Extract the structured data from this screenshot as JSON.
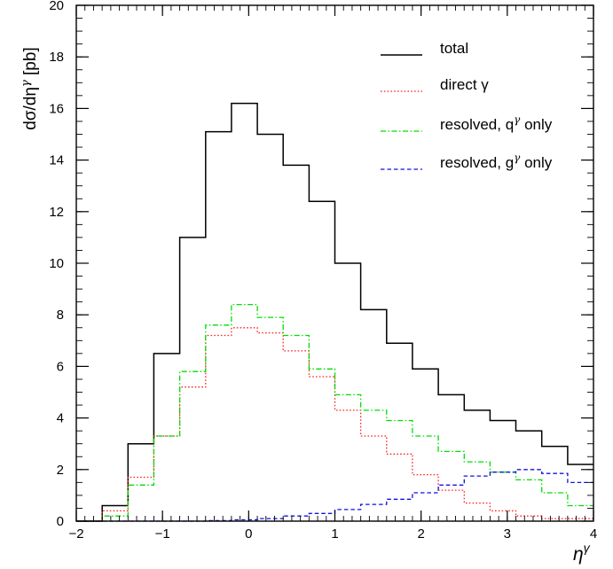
{
  "chart_data": {
    "type": "line",
    "title": "",
    "xlabel": "η^γ",
    "xlabel_base": "η",
    "xlabel_sup": "γ",
    "ylabel": "dσ/dη^γ [pb]",
    "ylabel_main": "dσ/dη",
    "ylabel_sup": "γ",
    "ylabel_unit": " [pb]",
    "xlim": [
      -2,
      4
    ],
    "ylim": [
      0,
      20
    ],
    "grid": false,
    "legend_placement": "top-right",
    "x_ticks": [
      {
        "v": -2,
        "label": "−2"
      },
      {
        "v": -1,
        "label": "−1"
      },
      {
        "v": 0,
        "label": "0"
      },
      {
        "v": 1,
        "label": "1"
      },
      {
        "v": 2,
        "label": "2"
      },
      {
        "v": 3,
        "label": "3"
      },
      {
        "v": 4,
        "label": "4"
      }
    ],
    "y_ticks": [
      {
        "v": 0,
        "label": "0"
      },
      {
        "v": 2,
        "label": "2"
      },
      {
        "v": 4,
        "label": "4"
      },
      {
        "v": 6,
        "label": "6"
      },
      {
        "v": 8,
        "label": "8"
      },
      {
        "v": 10,
        "label": "10"
      },
      {
        "v": 12,
        "label": "12"
      },
      {
        "v": 14,
        "label": "14"
      },
      {
        "v": 16,
        "label": "16"
      },
      {
        "v": 18,
        "label": "18"
      },
      {
        "v": 20,
        "label": "20"
      }
    ],
    "bin_edges": [
      -2.0,
      -1.7,
      -1.4,
      -1.1,
      -0.8,
      -0.5,
      -0.2,
      0.1,
      0.4,
      0.7,
      1.0,
      1.3,
      1.6,
      1.9,
      2.2,
      2.5,
      2.8,
      3.1,
      3.4,
      3.7,
      4.0
    ],
    "series": [
      {
        "name": "total",
        "legend_base": "total",
        "legend_sup": "",
        "legend_suffix": "",
        "color": "#000000",
        "dash": "",
        "values": [
          0.0,
          0.6,
          3.0,
          6.5,
          11.0,
          15.1,
          16.2,
          15.0,
          13.8,
          12.4,
          10.0,
          8.2,
          6.9,
          5.9,
          4.9,
          4.3,
          3.9,
          3.5,
          2.9,
          2.2
        ]
      },
      {
        "name": "direct γ",
        "legend_base": "direct γ",
        "legend_sup": "",
        "legend_suffix": "",
        "color": "#ff2020",
        "dash": "1.6 2.2",
        "values": [
          0.0,
          0.4,
          1.7,
          3.3,
          5.2,
          7.2,
          7.5,
          7.3,
          6.6,
          5.6,
          4.3,
          3.3,
          2.6,
          1.8,
          1.2,
          0.7,
          0.4,
          0.2,
          0.1,
          0.1
        ]
      },
      {
        "name": "resolved, q^γ only",
        "legend_base": "resolved, q",
        "legend_sup": "γ",
        "legend_suffix": " only",
        "color": "#00dd00",
        "dash": "6 2.5 1.5 2.5",
        "values": [
          0.0,
          0.2,
          1.4,
          3.3,
          5.8,
          7.6,
          8.4,
          7.9,
          7.2,
          5.9,
          4.9,
          4.3,
          3.9,
          3.3,
          2.7,
          2.3,
          1.9,
          1.6,
          1.1,
          0.6
        ]
      },
      {
        "name": "resolved, g^γ only",
        "legend_base": "resolved, g",
        "legend_sup": "γ",
        "legend_suffix": " only",
        "color": "#1010dd",
        "dash": "4.5 3",
        "values": [
          0.0,
          0.0,
          0.0,
          0.0,
          0.0,
          0.02,
          0.05,
          0.1,
          0.2,
          0.3,
          0.45,
          0.65,
          0.85,
          1.1,
          1.4,
          1.75,
          1.9,
          2.0,
          1.85,
          1.5
        ]
      }
    ]
  }
}
